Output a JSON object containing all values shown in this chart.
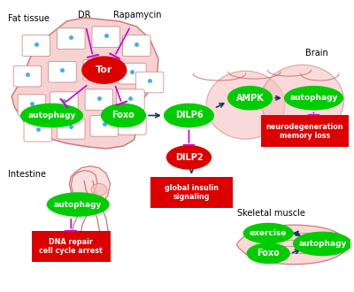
{
  "bg_color": "#ffffff",
  "fat_tissue_label": "Fat tissue",
  "brain_label": "Brain",
  "intestine_label": "Intestine",
  "skeletal_muscle_label": "Skeletal muscle",
  "dr_label": "DR",
  "rapamycin_label": "Rapamycin",
  "dark_blue": "#1a3366",
  "magenta": "#cc00cc",
  "green": "#00cc00",
  "red": "#dd0000",
  "pink_fill": "#f5c0c0",
  "pink_edge": "#cc7777",
  "cell_edge": "#cc9999",
  "blue_dot": "#44aaee"
}
